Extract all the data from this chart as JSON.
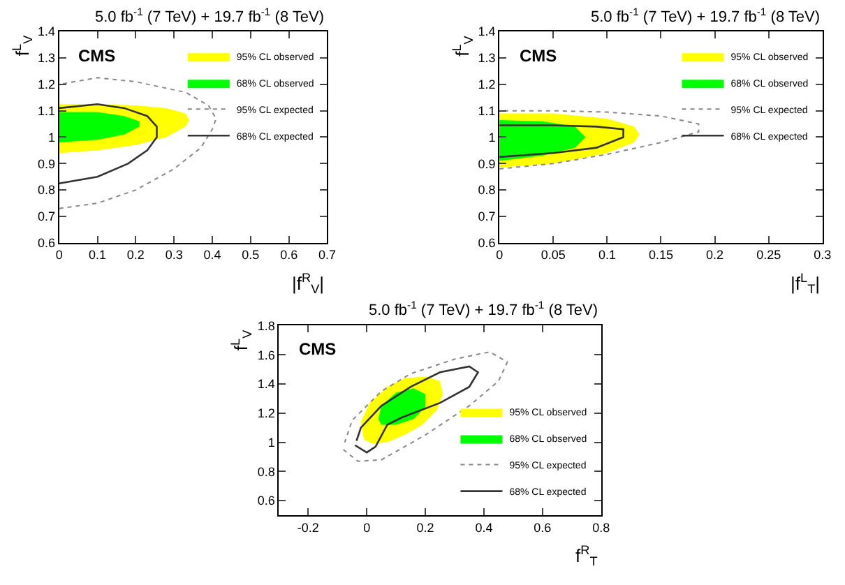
{
  "chart_data": [
    {
      "type": "area",
      "title": "5.0 fb$^{-1}$ (7 TeV) + 19.7 fb$^{-1}$ (8 TeV)",
      "xlabel": "|f$^{R}$$_{V}$|",
      "ylabel": "f$^{L}$$_{V}$",
      "annotations": [
        "CMS"
      ],
      "xlim": [
        0,
        0.7
      ],
      "xticks": [
        0,
        0.1,
        0.2,
        0.3,
        0.4,
        0.5,
        0.6,
        0.7
      ],
      "ylim": [
        0.6,
        1.4
      ],
      "yticks": [
        0.6,
        0.7,
        0.8,
        0.9,
        1,
        1.1,
        1.2,
        1.3,
        1.4
      ],
      "legend": "top right",
      "series": [
        {
          "name": "95% CL observed",
          "type": "area",
          "color": "#ffff00",
          "x": [
            0,
            0.1,
            0.2,
            0.28,
            0.33,
            0.34,
            0.33,
            0.28,
            0.2,
            0.1,
            0
          ],
          "values": [
            0.94,
            0.95,
            0.97,
            1.0,
            1.04,
            1.065,
            1.09,
            1.11,
            1.12,
            1.125,
            1.125
          ]
        },
        {
          "name": "68% CL observed",
          "type": "area",
          "color": "#00ff00",
          "x": [
            0,
            0.1,
            0.17,
            0.21,
            0.21,
            0.17,
            0.1,
            0
          ],
          "values": [
            0.98,
            0.99,
            1.01,
            1.04,
            1.06,
            1.08,
            1.095,
            1.095
          ]
        },
        {
          "name": "95% CL expected",
          "type": "line",
          "line_style": "dotted",
          "color": "#888888",
          "x": [
            0,
            0.1,
            0.2,
            0.3,
            0.37,
            0.4,
            0.41,
            0.39,
            0.33,
            0.2,
            0.1,
            0
          ],
          "values": [
            0.73,
            0.75,
            0.8,
            0.88,
            0.96,
            1.03,
            1.07,
            1.12,
            1.17,
            1.21,
            1.225,
            1.2
          ]
        },
        {
          "name": "68% CL expected",
          "type": "line",
          "line_style": "solid",
          "color": "#333333",
          "x": [
            0,
            0.1,
            0.18,
            0.23,
            0.255,
            0.255,
            0.23,
            0.17,
            0.1,
            0
          ],
          "values": [
            0.825,
            0.85,
            0.9,
            0.95,
            1.0,
            1.04,
            1.08,
            1.11,
            1.125,
            1.11
          ]
        }
      ]
    },
    {
      "type": "area",
      "title": "5.0 fb$^{-1}$ (7 TeV) + 19.7 fb$^{-1}$ (8 TeV)",
      "xlabel": "|f$^{L}$$_{T}$|",
      "ylabel": "f$^{L}$$_{V}$",
      "annotations": [
        "CMS"
      ],
      "xlim": [
        0,
        0.3
      ],
      "xticks": [
        0,
        0.05,
        0.1,
        0.15,
        0.2,
        0.25,
        0.3
      ],
      "ylim": [
        0.6,
        1.4
      ],
      "yticks": [
        0.6,
        0.7,
        0.8,
        0.9,
        1,
        1.1,
        1.2,
        1.3,
        1.4
      ],
      "legend": "top right",
      "series": [
        {
          "name": "95% CL observed",
          "type": "area",
          "color": "#ffff00",
          "x": [
            0,
            0.05,
            0.1,
            0.125,
            0.13,
            0.125,
            0.1,
            0.05,
            0
          ],
          "values": [
            0.885,
            0.9,
            0.94,
            0.98,
            1.01,
            1.04,
            1.07,
            1.09,
            1.09
          ]
        },
        {
          "name": "68% CL observed",
          "type": "area",
          "color": "#00ff00",
          "x": [
            0,
            0.04,
            0.07,
            0.08,
            0.07,
            0.04,
            0
          ],
          "values": [
            0.91,
            0.93,
            0.96,
            1.0,
            1.04,
            1.06,
            1.065
          ]
        },
        {
          "name": "95% CL expected",
          "type": "line",
          "line_style": "dotted",
          "color": "#888888",
          "x": [
            0,
            0.05,
            0.1,
            0.15,
            0.185,
            0.185,
            0.15,
            0.1,
            0.05,
            0
          ],
          "values": [
            0.88,
            0.9,
            0.935,
            0.98,
            1.02,
            1.05,
            1.08,
            1.095,
            1.1,
            1.1
          ]
        },
        {
          "name": "68% CL expected",
          "type": "line",
          "line_style": "solid",
          "color": "#333333",
          "x": [
            0,
            0.05,
            0.09,
            0.115,
            0.115,
            0.09,
            0.05,
            0
          ],
          "values": [
            0.925,
            0.94,
            0.96,
            1.0,
            1.03,
            1.04,
            1.045,
            1.045
          ]
        }
      ]
    },
    {
      "type": "area",
      "title": "5.0 fb$^{-1}$ (7 TeV) + 19.7 fb$^{-1}$ (8 TeV)",
      "xlabel": "f$^{R}$$_{T}$",
      "ylabel": "f$^{L}$$_{V}$",
      "annotations": [
        "CMS"
      ],
      "xlim": [
        -0.3,
        0.8
      ],
      "xticks": [
        -0.2,
        0,
        0.2,
        0.4,
        0.6,
        0.8
      ],
      "ylim": [
        0.5,
        1.8
      ],
      "yticks": [
        0.6,
        0.8,
        1,
        1.2,
        1.4,
        1.6,
        1.8
      ],
      "legend": "bottom right",
      "series": [
        {
          "name": "95% CL observed",
          "type": "area",
          "color": "#ffff00",
          "x": [
            -0.01,
            0.02,
            0.07,
            0.13,
            0.19,
            0.24,
            0.26,
            0.25,
            0.2,
            0.13,
            0.07,
            0.01,
            -0.02,
            -0.01
          ],
          "values": [
            1.02,
            0.99,
            1.0,
            1.05,
            1.12,
            1.22,
            1.33,
            1.42,
            1.45,
            1.44,
            1.38,
            1.27,
            1.14,
            1.02
          ]
        },
        {
          "name": "68% CL observed",
          "type": "area",
          "color": "#00ff00",
          "x": [
            0.05,
            0.1,
            0.16,
            0.2,
            0.2,
            0.16,
            0.1,
            0.05,
            0.04,
            0.05
          ],
          "values": [
            1.12,
            1.12,
            1.16,
            1.24,
            1.33,
            1.37,
            1.34,
            1.25,
            1.16,
            1.12
          ]
        },
        {
          "name": "95% CL expected",
          "type": "line",
          "line_style": "dotted",
          "color": "#888888",
          "x": [
            -0.08,
            -0.03,
            0.05,
            0.2,
            0.35,
            0.45,
            0.48,
            0.42,
            0.3,
            0.15,
            0.05,
            -0.05,
            -0.075
          ],
          "values": [
            0.95,
            0.87,
            0.88,
            1.05,
            1.25,
            1.42,
            1.55,
            1.62,
            1.57,
            1.47,
            1.35,
            1.15,
            1.0
          ]
        },
        {
          "name": "68% CL expected",
          "type": "line",
          "line_style": "solid",
          "color": "#333333",
          "x": [
            -0.04,
            0.0,
            0.03,
            0.07,
            0.12,
            0.25,
            0.35,
            0.38,
            0.35,
            0.25,
            0.15,
            0.05,
            -0.02,
            -0.035
          ],
          "values": [
            0.98,
            0.93,
            0.97,
            1.12,
            1.17,
            1.27,
            1.38,
            1.48,
            1.52,
            1.48,
            1.38,
            1.25,
            1.1,
            1.01
          ]
        }
      ]
    }
  ]
}
